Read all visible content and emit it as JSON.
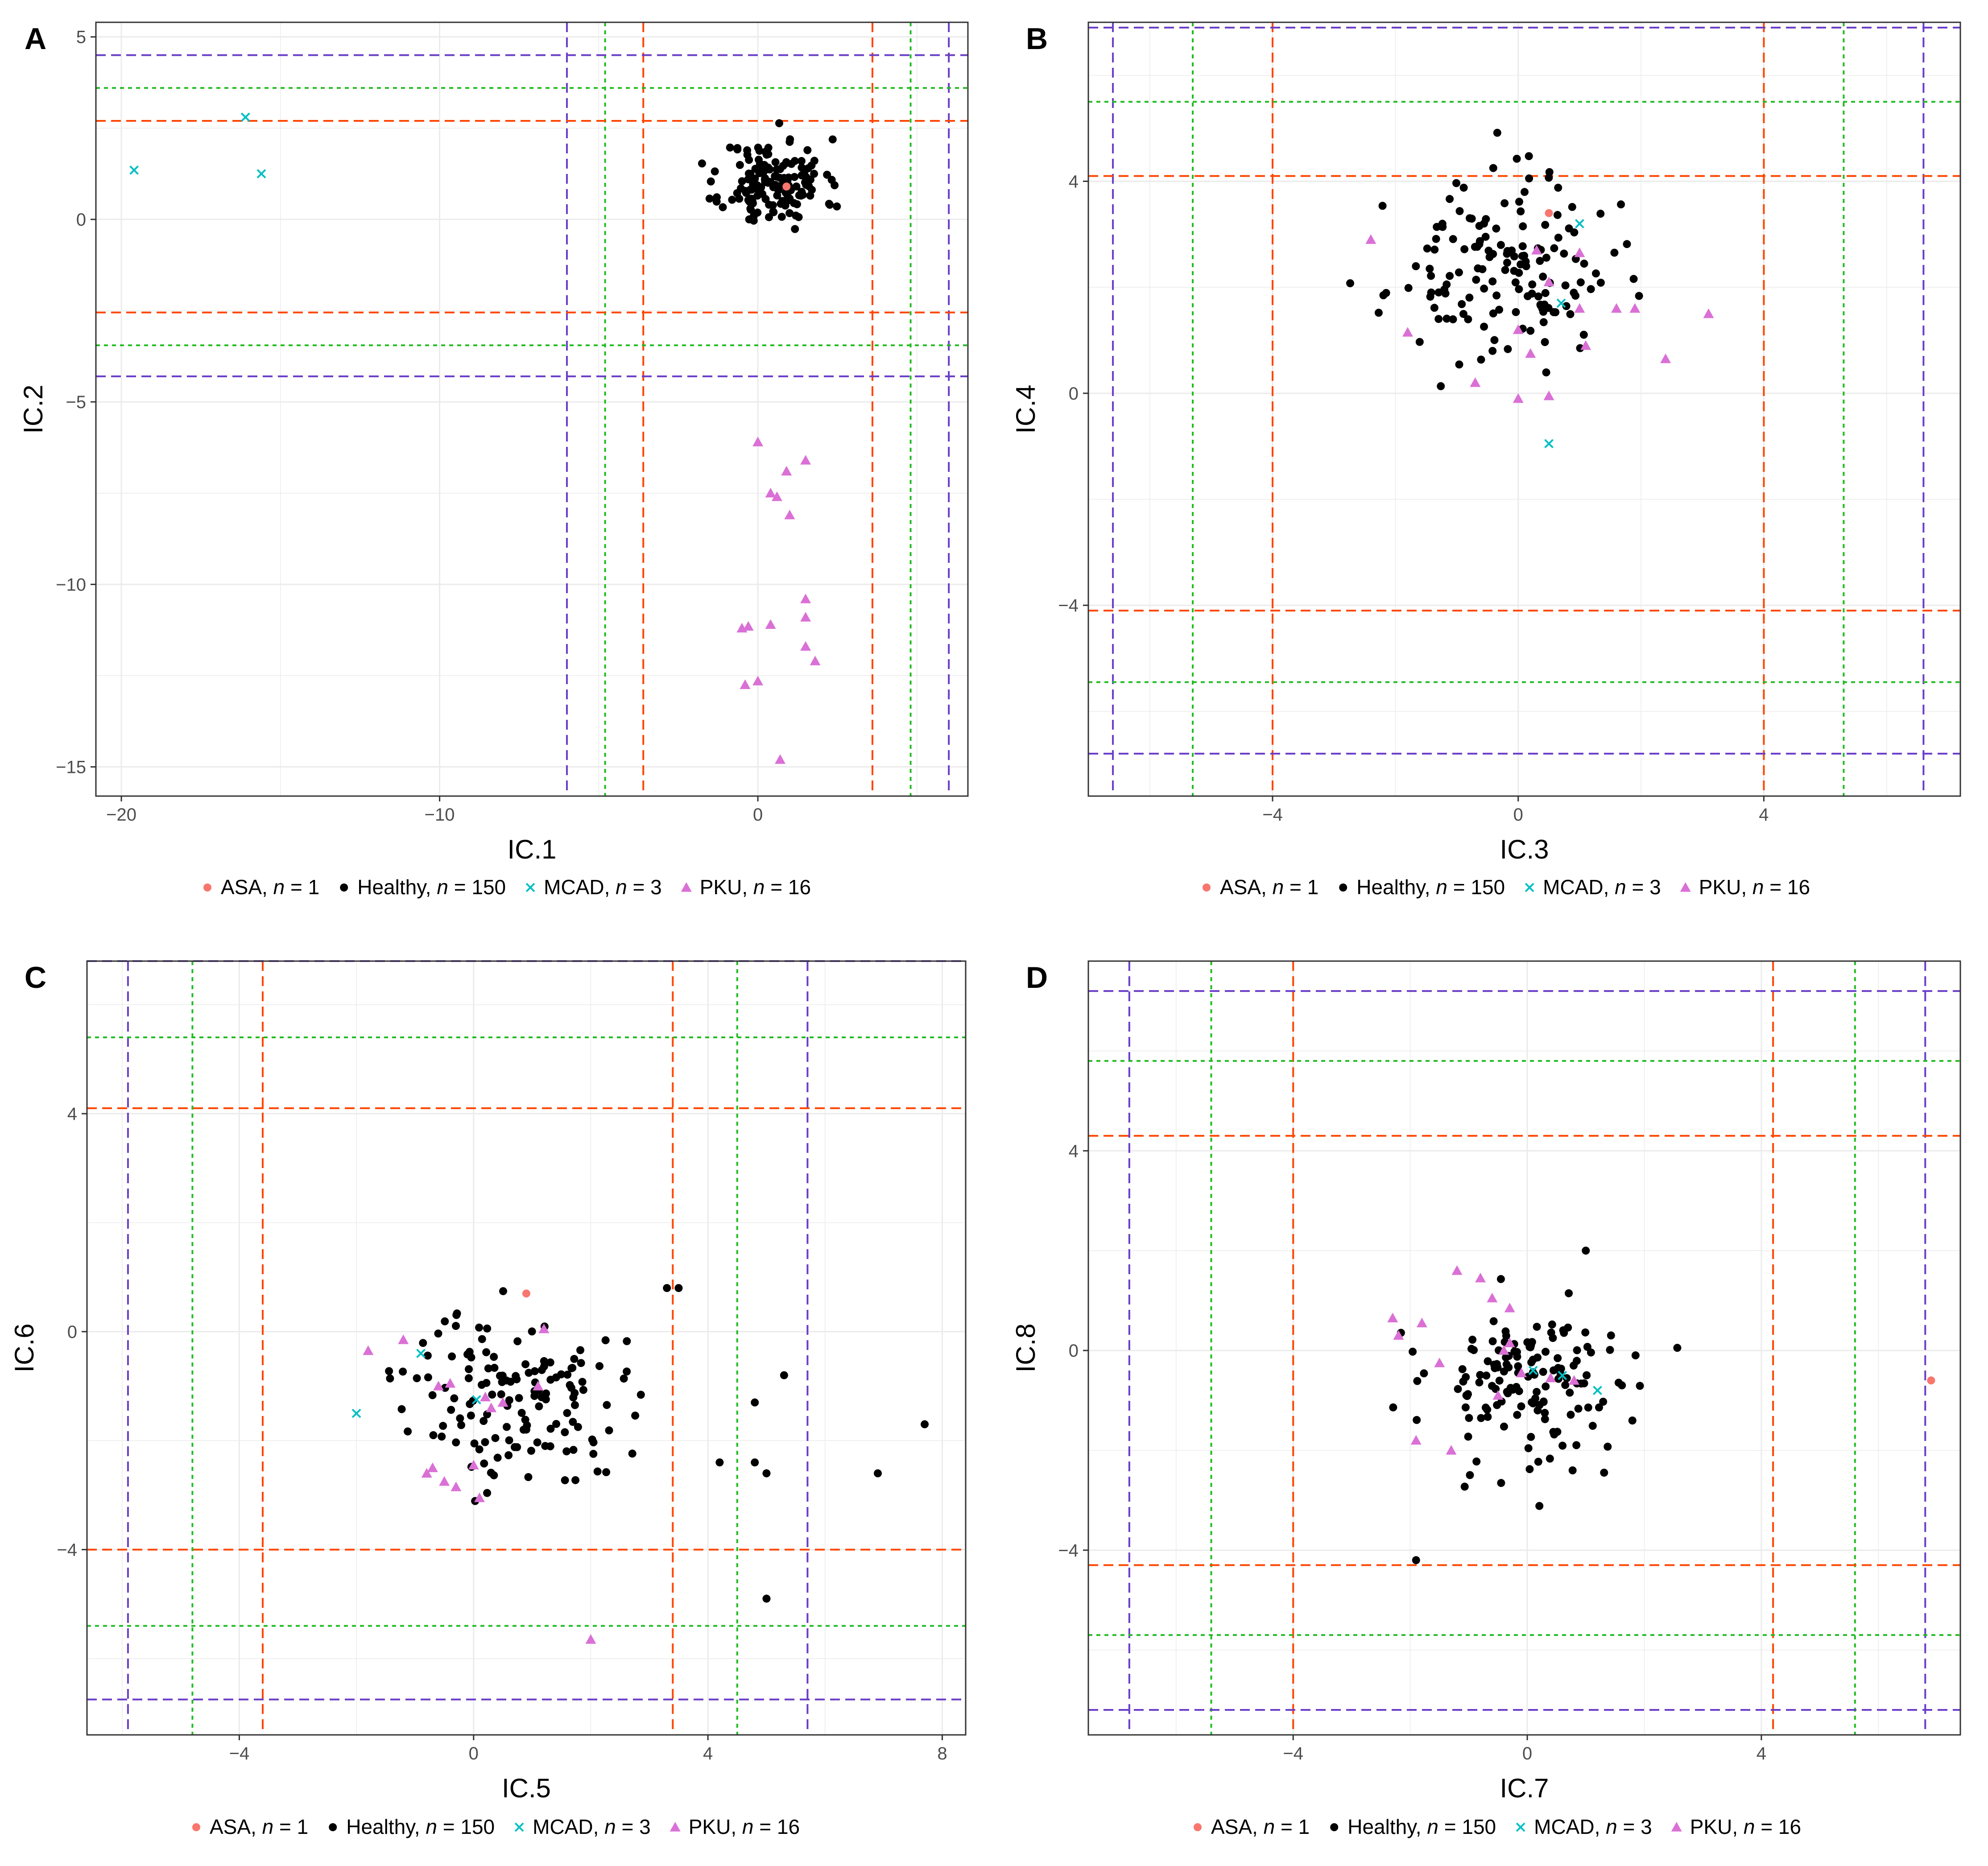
{
  "legend": {
    "entries": [
      {
        "group": "ASA",
        "label": "ASA, ",
        "n_label": "n",
        "count": " = 1",
        "color": "#F8766D",
        "marker": "circle"
      },
      {
        "group": "Healthy",
        "label": "Healthy, ",
        "n_label": "n",
        "count": " = 150",
        "color": "#000000",
        "marker": "circle"
      },
      {
        "group": "MCAD",
        "label": "MCAD, ",
        "n_label": "n",
        "count": " = 3",
        "color": "#00BFC4",
        "marker": "cross"
      },
      {
        "group": "PKU",
        "label": "PKU, ",
        "n_label": "n",
        "count": " = 16",
        "color": "#DA70D6",
        "marker": "triangle"
      }
    ]
  },
  "threshold_colors": {
    "red": "#FF4500",
    "green": "#22BB22",
    "purple": "#6A3DC8"
  },
  "chart_data": [
    {
      "panel": "A",
      "type": "scatter",
      "xlabel": "IC.1",
      "ylabel": "IC.2",
      "xlim": [
        -20.8,
        6.6
      ],
      "ylim": [
        -15.8,
        5.4
      ],
      "xticks": [
        {
          "v": -20,
          "t": "−20"
        },
        {
          "v": -10,
          "t": "−10"
        },
        {
          "v": 0,
          "t": "0"
        }
      ],
      "yticks": [
        {
          "v": 5,
          "t": "5"
        },
        {
          "v": 0,
          "t": "0"
        },
        {
          "v": -5,
          "t": "−5"
        },
        {
          "v": -10,
          "t": "−10"
        },
        {
          "v": -15,
          "t": "−15"
        }
      ],
      "vlines": [
        {
          "v": -3.6,
          "c": "red"
        },
        {
          "v": 3.6,
          "c": "red"
        },
        {
          "v": -4.8,
          "c": "green"
        },
        {
          "v": 4.8,
          "c": "green"
        },
        {
          "v": -6.0,
          "c": "purple"
        },
        {
          "v": 6.0,
          "c": "purple"
        }
      ],
      "hlines": [
        {
          "v": 2.7,
          "c": "red"
        },
        {
          "v": -2.55,
          "c": "red"
        },
        {
          "v": 3.6,
          "c": "green"
        },
        {
          "v": -3.45,
          "c": "green"
        },
        {
          "v": 4.5,
          "c": "purple"
        },
        {
          "v": -4.3,
          "c": "purple"
        }
      ],
      "healthy": {
        "cx": 0.5,
        "cy": 1.0,
        "sx": 0.8,
        "sy": 0.6,
        "n": 150,
        "seed": 11
      },
      "points": {
        "ASA": [
          [
            0.9,
            0.9
          ]
        ],
        "MCAD": [
          [
            -19.6,
            1.35
          ],
          [
            -16.1,
            2.8
          ],
          [
            -15.6,
            1.25
          ]
        ],
        "PKU": [
          [
            0.0,
            -6.1
          ],
          [
            1.5,
            -6.6
          ],
          [
            0.9,
            -6.9
          ],
          [
            0.4,
            -7.5
          ],
          [
            0.6,
            -7.6
          ],
          [
            1.0,
            -8.1
          ],
          [
            1.5,
            -10.4
          ],
          [
            1.5,
            -10.9
          ],
          [
            0.4,
            -11.1
          ],
          [
            -0.5,
            -11.2
          ],
          [
            -0.3,
            -11.15
          ],
          [
            1.5,
            -11.7
          ],
          [
            1.8,
            -12.1
          ],
          [
            0.0,
            -12.65
          ],
          [
            -0.4,
            -12.75
          ],
          [
            0.7,
            -14.8
          ]
        ]
      }
    },
    {
      "panel": "B",
      "type": "scatter",
      "xlabel": "IC.3",
      "ylabel": "IC.4",
      "xlim": [
        -7.0,
        7.2
      ],
      "ylim": [
        -7.6,
        7.0
      ],
      "xticks": [
        {
          "v": -4,
          "t": "−4"
        },
        {
          "v": 0,
          "t": "0"
        },
        {
          "v": 4,
          "t": "4"
        }
      ],
      "yticks": [
        {
          "v": 4,
          "t": "4"
        },
        {
          "v": 0,
          "t": "0"
        },
        {
          "v": -4,
          "t": "−4"
        }
      ],
      "vlines": [
        {
          "v": -4.0,
          "c": "red"
        },
        {
          "v": 4.0,
          "c": "red"
        },
        {
          "v": -5.3,
          "c": "green"
        },
        {
          "v": 5.3,
          "c": "green"
        },
        {
          "v": -6.6,
          "c": "purple"
        },
        {
          "v": 6.6,
          "c": "purple"
        }
      ],
      "hlines": [
        {
          "v": 4.1,
          "c": "red"
        },
        {
          "v": -4.1,
          "c": "red"
        },
        {
          "v": 5.5,
          "c": "green"
        },
        {
          "v": -5.45,
          "c": "green"
        },
        {
          "v": 6.9,
          "c": "purple"
        },
        {
          "v": -6.8,
          "c": "purple"
        }
      ],
      "healthy": {
        "cx": -0.3,
        "cy": 2.3,
        "sx": 0.9,
        "sy": 0.85,
        "n": 150,
        "seed": 23
      },
      "points": {
        "ASA": [
          [
            0.5,
            3.4
          ]
        ],
        "MCAD": [
          [
            1.0,
            3.2
          ],
          [
            0.7,
            1.7
          ],
          [
            0.5,
            -0.95
          ]
        ],
        "PKU": [
          [
            -2.4,
            2.9
          ],
          [
            0.3,
            2.7
          ],
          [
            1.0,
            2.65
          ],
          [
            0.5,
            2.1
          ],
          [
            -1.8,
            1.15
          ],
          [
            0.0,
            1.2
          ],
          [
            1.9,
            1.6
          ],
          [
            1.0,
            1.6
          ],
          [
            1.6,
            1.6
          ],
          [
            3.1,
            1.5
          ],
          [
            1.1,
            0.9
          ],
          [
            0.2,
            0.75
          ],
          [
            2.4,
            0.65
          ],
          [
            -0.7,
            0.2
          ],
          [
            0.0,
            -0.1
          ],
          [
            0.5,
            -0.05
          ]
        ]
      }
    },
    {
      "panel": "C",
      "type": "scatter",
      "xlabel": "IC.5",
      "ylabel": "IC.6",
      "xlim": [
        -6.6,
        8.4
      ],
      "ylim": [
        -7.4,
        6.8
      ],
      "xticks": [
        {
          "v": -4,
          "t": "−4"
        },
        {
          "v": 0,
          "t": "0"
        },
        {
          "v": 4,
          "t": "4"
        },
        {
          "v": 8,
          "t": "8"
        }
      ],
      "yticks": [
        {
          "v": 4,
          "t": "4"
        },
        {
          "v": 0,
          "t": "0"
        },
        {
          "v": -4,
          "t": "−4"
        }
      ],
      "vlines": [
        {
          "v": -3.6,
          "c": "red"
        },
        {
          "v": 3.4,
          "c": "red"
        },
        {
          "v": -4.8,
          "c": "green"
        },
        {
          "v": 4.5,
          "c": "green"
        },
        {
          "v": -5.9,
          "c": "purple"
        },
        {
          "v": 5.7,
          "c": "purple"
        }
      ],
      "hlines": [
        {
          "v": 4.1,
          "c": "red"
        },
        {
          "v": -4.0,
          "c": "red"
        },
        {
          "v": 5.4,
          "c": "green"
        },
        {
          "v": -5.4,
          "c": "green"
        },
        {
          "v": 6.8,
          "c": "purple"
        },
        {
          "v": -6.75,
          "c": "purple"
        }
      ],
      "healthy": {
        "cx": 0.7,
        "cy": -1.2,
        "sx": 0.9,
        "sy": 0.8,
        "n": 142,
        "seed": 37
      },
      "extra_healthy": [
        [
          3.3,
          0.8
        ],
        [
          3.5,
          0.8
        ],
        [
          4.2,
          -2.4
        ],
        [
          4.8,
          -1.3
        ],
        [
          4.8,
          -2.4
        ],
        [
          5.0,
          -2.6
        ],
        [
          5.3,
          -0.8
        ],
        [
          5.0,
          -4.9
        ],
        [
          6.9,
          -2.6
        ],
        [
          7.7,
          -1.7
        ]
      ],
      "points": {
        "ASA": [
          [
            0.9,
            0.7
          ]
        ],
        "MCAD": [
          [
            -2.0,
            -1.5
          ],
          [
            -0.9,
            -0.4
          ],
          [
            0.05,
            -1.25
          ]
        ],
        "PKU": [
          [
            -1.8,
            -0.35
          ],
          [
            -1.2,
            -0.15
          ],
          [
            -0.4,
            -0.95
          ],
          [
            1.2,
            0.05
          ],
          [
            1.1,
            -1.0
          ],
          [
            0.2,
            -1.2
          ],
          [
            -0.7,
            -2.5
          ],
          [
            -0.8,
            -2.6
          ],
          [
            -0.5,
            -2.75
          ],
          [
            -0.3,
            -2.85
          ],
          [
            0.0,
            -2.45
          ],
          [
            0.1,
            -3.05
          ],
          [
            0.5,
            -1.3
          ],
          [
            -0.6,
            -1.0
          ],
          [
            0.3,
            -1.4
          ],
          [
            2.0,
            -5.65
          ]
        ]
      }
    },
    {
      "panel": "D",
      "type": "scatter",
      "xlabel": "IC.7",
      "ylabel": "IC.8",
      "xlim": [
        -7.5,
        7.4
      ],
      "ylim": [
        -7.7,
        7.8
      ],
      "xticks": [
        {
          "v": -4,
          "t": "−4"
        },
        {
          "v": 0,
          "t": "0"
        },
        {
          "v": 4,
          "t": "4"
        }
      ],
      "yticks": [
        {
          "v": 4,
          "t": "4"
        },
        {
          "v": 0,
          "t": "0"
        },
        {
          "v": -4,
          "t": "−4"
        }
      ],
      "vlines": [
        {
          "v": -4.0,
          "c": "red"
        },
        {
          "v": 4.2,
          "c": "red"
        },
        {
          "v": -5.4,
          "c": "green"
        },
        {
          "v": 5.6,
          "c": "green"
        },
        {
          "v": -6.8,
          "c": "purple"
        },
        {
          "v": 6.8,
          "c": "purple"
        }
      ],
      "hlines": [
        {
          "v": 4.3,
          "c": "red"
        },
        {
          "v": -4.3,
          "c": "red"
        },
        {
          "v": 5.8,
          "c": "green"
        },
        {
          "v": -5.7,
          "c": "green"
        },
        {
          "v": 7.2,
          "c": "purple"
        },
        {
          "v": -7.2,
          "c": "purple"
        }
      ],
      "healthy": {
        "cx": 0.1,
        "cy": -0.7,
        "sx": 0.9,
        "sy": 0.85,
        "n": 148,
        "seed": 53
      },
      "extra_healthy": [
        [
          -1.9,
          -4.2
        ],
        [
          1.0,
          2.0
        ]
      ],
      "points": {
        "ASA": [
          [
            6.9,
            -0.6
          ]
        ],
        "MCAD": [
          [
            0.1,
            -0.4
          ],
          [
            0.6,
            -0.5
          ],
          [
            1.2,
            -0.8
          ]
        ],
        "PKU": [
          [
            -2.3,
            0.65
          ],
          [
            -1.8,
            0.55
          ],
          [
            -2.2,
            0.3
          ],
          [
            -1.5,
            -0.25
          ],
          [
            -1.2,
            1.6
          ],
          [
            -0.8,
            1.45
          ],
          [
            -0.6,
            1.05
          ],
          [
            -0.3,
            0.85
          ],
          [
            -0.3,
            0.15
          ],
          [
            -0.4,
            0.0
          ],
          [
            -0.1,
            -0.45
          ],
          [
            0.4,
            -0.55
          ],
          [
            -1.9,
            -1.8
          ],
          [
            -1.3,
            -2.0
          ],
          [
            -0.5,
            -0.9
          ],
          [
            0.8,
            -0.6
          ]
        ]
      }
    }
  ]
}
